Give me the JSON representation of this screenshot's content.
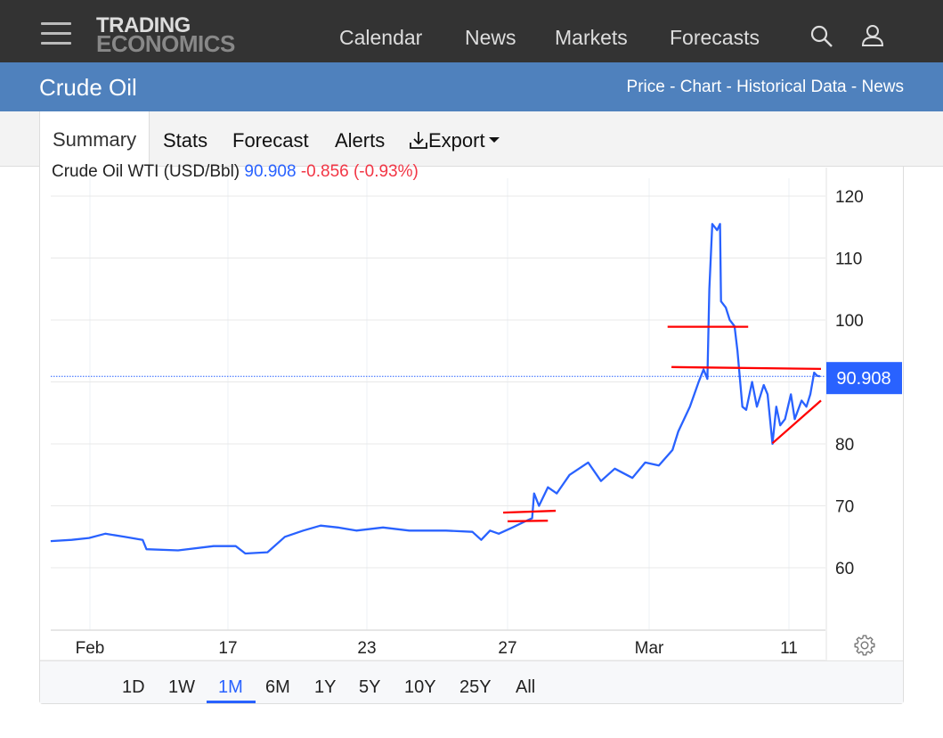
{
  "header": {
    "logo_line1": "TRADING",
    "logo_line2": "ECONOMICS",
    "nav": [
      "Calendar",
      "News",
      "Markets",
      "Forecasts"
    ]
  },
  "page": {
    "title": "Crude Oil",
    "links": "Price - Chart - Historical Data - News"
  },
  "tabs": {
    "summary": "Summary",
    "stats": "Stats",
    "forecast": "Forecast",
    "alerts": "Alerts",
    "export": "Export"
  },
  "legend": {
    "name": "Crude Oil WTI (USD/Bbl)",
    "value": "90.908",
    "change": "-0.856 (-0.93%)"
  },
  "ranges": [
    "1D",
    "1W",
    "1M",
    "6M",
    "1Y",
    "5Y",
    "10Y",
    "25Y",
    "All"
  ],
  "active_range": "1M",
  "colors": {
    "line": "#2962ff",
    "annotation": "#ff0000",
    "topbar": "#333333",
    "titlebar": "#4f81bd"
  },
  "chart_data": {
    "type": "line",
    "title": "",
    "xlabel": "",
    "ylabel": "",
    "ylim": [
      50,
      121
    ],
    "yticks": [
      60,
      70,
      80,
      90,
      100,
      110,
      120
    ],
    "ytick_labels": [
      "60",
      "70",
      "80",
      "",
      "100",
      "110",
      "120"
    ],
    "xticks": [
      {
        "label": "Feb",
        "date": "2026-02-11T00"
      },
      {
        "label": "17",
        "date": "2026-02-17T00"
      },
      {
        "label": "23",
        "date": "2026-02-23T00"
      },
      {
        "label": "27",
        "date": "2026-02-27T00"
      },
      {
        "label": "Mar",
        "date": "2026-03-05T00"
      },
      {
        "label": "11",
        "date": "2026-03-11T00"
      }
    ],
    "grid": true,
    "last_value": 90.908,
    "series": [
      {
        "points": [
          [
            "2026-02-09T07",
            64.3
          ],
          [
            "2026-02-10T05",
            64.5
          ],
          [
            "2026-02-10T23",
            64.8
          ],
          [
            "2026-02-11T16",
            65.5
          ],
          [
            "2026-02-12T12",
            65.0
          ],
          [
            "2026-02-13T07",
            64.5
          ],
          [
            "2026-02-13T11",
            63.0
          ],
          [
            "2026-02-14T20",
            62.8
          ],
          [
            "2026-02-16T09",
            63.5
          ],
          [
            "2026-02-17T08",
            63.5
          ],
          [
            "2026-02-17T18",
            62.3
          ],
          [
            "2026-02-18T17",
            62.5
          ],
          [
            "2026-02-19T11",
            65.0
          ],
          [
            "2026-02-20T06",
            66.0
          ],
          [
            "2026-02-21T00",
            66.8
          ],
          [
            "2026-02-21T18",
            66.5
          ],
          [
            "2026-02-22T13",
            66.0
          ],
          [
            "2026-02-23T11",
            66.5
          ],
          [
            "2026-02-24T05",
            66.0
          ],
          [
            "2026-02-25T06",
            66.0
          ],
          [
            "2026-02-26T00",
            65.8
          ],
          [
            "2026-02-26T06",
            64.5
          ],
          [
            "2026-02-26T12",
            66.0
          ],
          [
            "2026-02-26T18",
            65.5
          ],
          [
            "2026-02-27T05",
            66.5
          ],
          [
            "2026-02-27T18",
            67.5
          ],
          [
            "2026-02-28T01",
            68.0
          ],
          [
            "2026-02-28T03",
            72.0
          ],
          [
            "2026-02-28T08",
            70.0
          ],
          [
            "2026-02-28T17",
            73.0
          ],
          [
            "2026-03-01T02",
            72.0
          ],
          [
            "2026-03-01T15",
            75.0
          ],
          [
            "2026-03-02T10",
            77.0
          ],
          [
            "2026-03-02T23",
            74.0
          ],
          [
            "2026-03-03T13",
            76.0
          ],
          [
            "2026-03-04T07",
            74.5
          ],
          [
            "2026-03-04T20",
            77.0
          ],
          [
            "2026-03-05T10",
            76.5
          ],
          [
            "2026-03-06T00",
            79.0
          ],
          [
            "2026-03-06T06",
            82.0
          ],
          [
            "2026-03-06T18",
            86.0
          ],
          [
            "2026-03-07T03",
            90.0
          ],
          [
            "2026-03-07T08",
            92.0
          ],
          [
            "2026-03-07T12",
            90.5
          ],
          [
            "2026-03-07T14",
            105.0
          ],
          [
            "2026-03-07T17",
            115.5
          ],
          [
            "2026-03-07T22",
            114.5
          ],
          [
            "2026-03-08T01",
            115.5
          ],
          [
            "2026-03-08T02",
            103.0
          ],
          [
            "2026-03-08T07",
            102.0
          ],
          [
            "2026-03-08T11",
            100.0
          ],
          [
            "2026-03-08T16",
            99.0
          ],
          [
            "2026-03-08T19",
            95.0
          ],
          [
            "2026-03-09T00",
            86.0
          ],
          [
            "2026-03-09T04",
            85.5
          ],
          [
            "2026-03-09T10",
            90.0
          ],
          [
            "2026-03-09T15",
            86.0
          ],
          [
            "2026-03-09T22",
            89.5
          ],
          [
            "2026-03-10T02",
            88.0
          ],
          [
            "2026-03-10T07",
            80.0
          ],
          [
            "2026-03-10T11",
            86.0
          ],
          [
            "2026-03-10T15",
            83.0
          ],
          [
            "2026-03-10T20",
            84.0
          ],
          [
            "2026-03-11T02",
            88.0
          ],
          [
            "2026-03-11T06",
            84.0
          ],
          [
            "2026-03-11T13",
            87.0
          ],
          [
            "2026-03-11T18",
            86.0
          ],
          [
            "2026-03-11T22",
            88.0
          ],
          [
            "2026-03-12T02",
            91.5
          ],
          [
            "2026-03-12T05",
            91.0
          ],
          [
            "2026-03-12T08",
            90.9
          ]
        ]
      }
    ],
    "annotations": [
      {
        "type": "trendline",
        "from": [
          "2026-02-26T21",
          68.9
        ],
        "to": [
          "2026-03-01T01",
          69.2
        ]
      },
      {
        "type": "trendline",
        "from": [
          "2026-02-27T00",
          67.5
        ],
        "to": [
          "2026-02-28T17",
          67.6
        ]
      },
      {
        "type": "trendline",
        "from": [
          "2026-03-05T19",
          98.9
        ],
        "to": [
          "2026-03-09T06",
          98.9
        ]
      },
      {
        "type": "trendline",
        "from": [
          "2026-03-05T23",
          92.4
        ],
        "to": [
          "2026-03-12T09",
          92.1
        ]
      },
      {
        "type": "trendline",
        "from": [
          "2026-03-10T07",
          80.1
        ],
        "to": [
          "2026-03-12T09",
          87.0
        ]
      }
    ]
  }
}
